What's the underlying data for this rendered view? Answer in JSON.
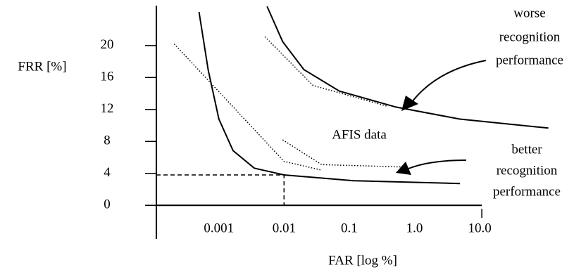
{
  "chart_data": {
    "type": "line",
    "x_label": "FAR [log %]",
    "y_label": "FRR [%]",
    "log_x": true,
    "xlim": [
      0.00011,
      150
    ],
    "ylim": [
      -4.2,
      25
    ],
    "xticks": [
      0.001,
      0.01,
      0.1,
      {
        "value": 1,
        "label": "1.0"
      },
      {
        "value": 10,
        "label": "10.0"
      }
    ],
    "yticks": [
      0,
      4,
      8,
      12,
      16,
      20
    ],
    "series": [
      {
        "style": "solid",
        "color": "#000000",
        "x": [
          0.000497,
          0.000687,
          0.001,
          0.00165,
          0.00349,
          0.01,
          0.116,
          4.97
        ],
        "values": [
          24.2,
          16.9,
          10.8,
          6.85,
          4.66,
          3.8,
          3.08,
          2.73
        ]
      },
      {
        "style": "solid",
        "color": "#000000",
        "x": [
          0.00548,
          0.0095,
          0.0201,
          0.0705,
          0.521,
          4.97,
          113
        ],
        "values": [
          24.9,
          20.5,
          17.0,
          14.3,
          12.3,
          10.8,
          9.67
        ]
      },
      {
        "style": "dotted",
        "color": "#000000",
        "x": [
          0.000207,
          0.01,
          0.0377
        ],
        "values": [
          20.2,
          5.5,
          4.4
        ]
      },
      {
        "style": "dotted",
        "color": "#000000",
        "x": [
          0.00509,
          0.0279,
          0.386
        ],
        "values": [
          21.1,
          15.0,
          12.4
        ]
      },
      {
        "style": "dotted",
        "color": "#000000",
        "x": [
          0.0095,
          0.0377,
          0.67
        ],
        "values": [
          8.2,
          5.1,
          4.8
        ]
      },
      {
        "style": "dashed",
        "color": "#000000",
        "x": [
          0.00011,
          0.01,
          0.01
        ],
        "values": [
          3.8,
          3.8,
          0
        ]
      }
    ],
    "annotations": [
      {
        "text": "AFIS data"
      },
      {
        "lines": [
          "worse",
          "recognition",
          "performance"
        ]
      },
      {
        "lines": [
          "better",
          "recognition",
          "performance"
        ]
      }
    ]
  }
}
